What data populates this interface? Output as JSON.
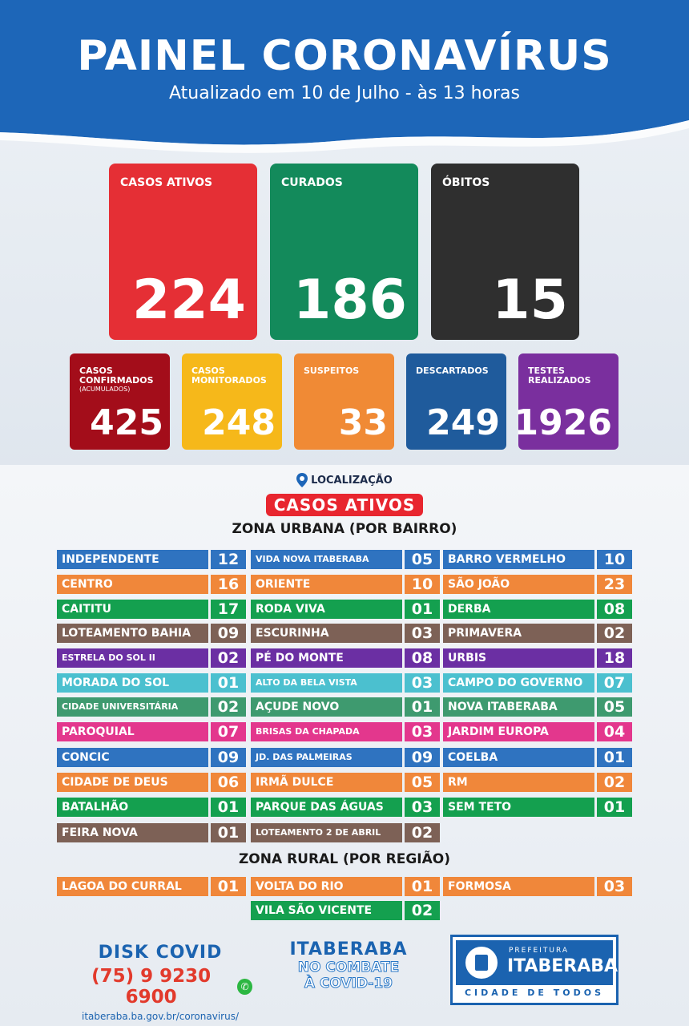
{
  "header": {
    "title": "PAINEL CORONAVÍRUS",
    "subtitle": "Atualizado em 10 de Julho - às 13 horas"
  },
  "main_stats": [
    {
      "label": "CASOS ATIVOS",
      "value": "224",
      "color": "#e52f35"
    },
    {
      "label": "CURADOS",
      "value": "186",
      "color": "#138a5b"
    },
    {
      "label": "ÓBITOS",
      "value": "15",
      "color": "#2f2f2f"
    }
  ],
  "secondary_stats": [
    {
      "label": "CASOS CONFIRMADOS",
      "sub": "(ACUMULADOS)",
      "value": "425",
      "color": "#a30d1a"
    },
    {
      "label": "CASOS MONITORADOS",
      "sub": "",
      "value": "248",
      "color": "#f6b81a"
    },
    {
      "label": "SUSPEITOS",
      "sub": "",
      "value": "33",
      "color": "#f08a35"
    },
    {
      "label": "DESCARTADOS",
      "sub": "",
      "value": "249",
      "color": "#1f5b9c"
    },
    {
      "label": "TESTES REALIZADOS",
      "sub": "",
      "value": "1926",
      "color": "#7a2f9e"
    }
  ],
  "location": {
    "label": "LOCALIZAÇÃO",
    "tag": "CASOS ATIVOS"
  },
  "urban_zone": {
    "title": "ZONA URBANA (POR BAIRRO)",
    "columns": [
      [
        {
          "name": "INDEPENDENTE",
          "value": "12",
          "color": "#2f73c0"
        },
        {
          "name": "CENTRO",
          "value": "16",
          "color": "#f0873a"
        },
        {
          "name": "CAITITU",
          "value": "17",
          "color": "#14a04f"
        },
        {
          "name": "LOTEAMENTO BAHIA",
          "value": "09",
          "color": "#7d6156"
        },
        {
          "name": "ESTRELA DO SOL II",
          "value": "02",
          "color": "#6b2fa3"
        },
        {
          "name": "MORADA DO SOL",
          "value": "01",
          "color": "#4bc0cf"
        },
        {
          "name": "CIDADE UNIVERSITÁRIA",
          "value": "02",
          "color": "#3e9a6f"
        },
        {
          "name": "PAROQUIAL",
          "value": "07",
          "color": "#e3378d"
        },
        {
          "name": "CONCIC",
          "value": "09",
          "color": "#2f73c0"
        },
        {
          "name": "CIDADE DE DEUS",
          "value": "06",
          "color": "#f0873a"
        },
        {
          "name": "BATALHÃO",
          "value": "01",
          "color": "#14a04f"
        },
        {
          "name": "FEIRA NOVA",
          "value": "01",
          "color": "#7d6156"
        }
      ],
      [
        {
          "name": "VIDA NOVA ITABERABA",
          "value": "05",
          "color": "#2f73c0"
        },
        {
          "name": "ORIENTE",
          "value": "10",
          "color": "#f0873a"
        },
        {
          "name": "RODA VIVA",
          "value": "01",
          "color": "#14a04f"
        },
        {
          "name": "ESCURINHA",
          "value": "03",
          "color": "#7d6156"
        },
        {
          "name": "PÉ DO MONTE",
          "value": "08",
          "color": "#6b2fa3"
        },
        {
          "name": "ALTO DA BELA VISTA",
          "value": "03",
          "color": "#4bc0cf"
        },
        {
          "name": "AÇUDE NOVO",
          "value": "01",
          "color": "#3e9a6f"
        },
        {
          "name": "BRISAS DA CHAPADA",
          "value": "03",
          "color": "#e3378d"
        },
        {
          "name": "JD. DAS PALMEIRAS",
          "value": "09",
          "color": "#2f73c0"
        },
        {
          "name": "IRMÃ DULCE",
          "value": "05",
          "color": "#f0873a"
        },
        {
          "name": "PARQUE DAS ÁGUAS",
          "value": "03",
          "color": "#14a04f"
        },
        {
          "name": "LOTEAMENTO 2 DE ABRIL",
          "value": "02",
          "color": "#7d6156"
        }
      ],
      [
        {
          "name": "BARRO VERMELHO",
          "value": "10",
          "color": "#2f73c0"
        },
        {
          "name": "SÃO JOÃO",
          "value": "23",
          "color": "#f0873a"
        },
        {
          "name": "DERBA",
          "value": "08",
          "color": "#14a04f"
        },
        {
          "name": "PRIMAVERA",
          "value": "02",
          "color": "#7d6156"
        },
        {
          "name": "URBIS",
          "value": "18",
          "color": "#6b2fa3"
        },
        {
          "name": "CAMPO DO GOVERNO",
          "value": "07",
          "color": "#4bc0cf"
        },
        {
          "name": "NOVA ITABERABA",
          "value": "05",
          "color": "#3e9a6f"
        },
        {
          "name": "JARDIM EUROPA",
          "value": "04",
          "color": "#e3378d"
        },
        {
          "name": "COELBA",
          "value": "01",
          "color": "#2f73c0"
        },
        {
          "name": "RM",
          "value": "02",
          "color": "#f0873a"
        },
        {
          "name": "SEM TETO",
          "value": "01",
          "color": "#14a04f"
        }
      ]
    ]
  },
  "rural_zone": {
    "title": "ZONA RURAL (POR REGIÃO)",
    "items": [
      {
        "name": "LAGOA DO CURRAL",
        "value": "01",
        "color": "#f0873a"
      },
      {
        "name": "VOLTA DO RIO",
        "value": "01",
        "color": "#f0873a"
      },
      {
        "name": "FORMOSA",
        "value": "03",
        "color": "#f0873a"
      },
      {
        "name": "VILA SÃO VICENTE",
        "value": "02",
        "color": "#14a04f"
      }
    ]
  },
  "footer": {
    "disk_title": "DISK COVID",
    "phone": "(75) 9 9230 6900",
    "url": "itaberaba.ba.gov.br/coronavirus/",
    "campaign_line1": "ITABERABA",
    "campaign_line2": "NO COMBATE",
    "campaign_line3": "À COVID-19",
    "logo_prefix": "PREFEITURA",
    "logo_city": "ITABERABA",
    "logo_slogan": "CIDADE DE TODOS"
  }
}
